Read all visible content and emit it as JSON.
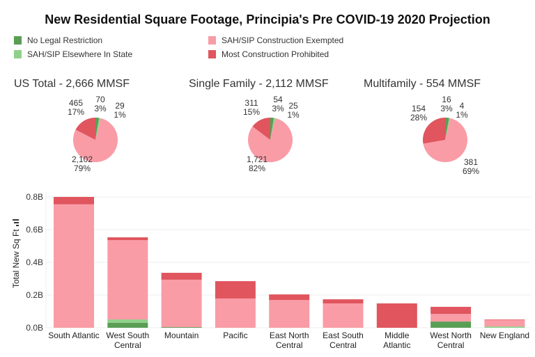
{
  "title": "New Residential Square Footage, Principia's Pre COVID-19 2020 Projection",
  "legend": [
    {
      "label": "No Legal Restriction",
      "color": "#5a9e55"
    },
    {
      "label": "SAH/SIP Elsewhere In State",
      "color": "#8fd18a"
    },
    {
      "label": "SAH/SIP Construction Exempted",
      "color": "#f99ca6"
    },
    {
      "label": "Most Construction Prohibited",
      "color": "#e0555e"
    }
  ],
  "chart_data": [
    {
      "type": "pie",
      "title": "US Total - 2,666 MMSF",
      "slices": [
        {
          "name": "No Legal Restriction",
          "value": 70,
          "value_label": "70",
          "percent": "3%"
        },
        {
          "name": "SAH/SIP Elsewhere In State",
          "value": 29,
          "value_label": "29",
          "percent": "1%"
        },
        {
          "name": "SAH/SIP Construction Exempted",
          "value": 2102,
          "value_label": "2,102",
          "percent": "79%"
        },
        {
          "name": "Most Construction Prohibited",
          "value": 465,
          "value_label": "465",
          "percent": "17%"
        }
      ]
    },
    {
      "type": "pie",
      "title": "Single Family - 2,112 MMSF",
      "slices": [
        {
          "name": "No Legal Restriction",
          "value": 54,
          "value_label": "54",
          "percent": "3%"
        },
        {
          "name": "SAH/SIP Elsewhere In State",
          "value": 25,
          "value_label": "25",
          "percent": "1%"
        },
        {
          "name": "SAH/SIP Construction Exempted",
          "value": 1721,
          "value_label": "1,721",
          "percent": "82%"
        },
        {
          "name": "Most Construction Prohibited",
          "value": 311,
          "value_label": "311",
          "percent": "15%"
        }
      ]
    },
    {
      "type": "pie",
      "title": "Multifamily - 554 MMSF",
      "slices": [
        {
          "name": "No Legal Restriction",
          "value": 16,
          "value_label": "16",
          "percent": "3%"
        },
        {
          "name": "SAH/SIP Elsewhere In State",
          "value": 4,
          "value_label": "4",
          "percent": "1%"
        },
        {
          "name": "SAH/SIP Construction Exempted",
          "value": 381,
          "value_label": "381",
          "percent": "69%"
        },
        {
          "name": "Most Construction Prohibited",
          "value": 154,
          "value_label": "154",
          "percent": "28%"
        }
      ]
    },
    {
      "type": "bar",
      "stacked": true,
      "ylabel": "Total New Sq Ft",
      "xlabel": "",
      "ylim": [
        0,
        0.8
      ],
      "yticks": [
        {
          "value": 0.0,
          "label": "0.0B"
        },
        {
          "value": 0.2,
          "label": "0.2B"
        },
        {
          "value": 0.4,
          "label": "0.4B"
        },
        {
          "value": 0.6,
          "label": "0.6B"
        },
        {
          "value": 0.8,
          "label": "0.8B"
        }
      ],
      "grid": true,
      "categories": [
        [
          "South Atlantic"
        ],
        [
          "West South",
          "Central"
        ],
        [
          "Mountain"
        ],
        [
          "Pacific"
        ],
        [
          "East North",
          "Central"
        ],
        [
          "East South",
          "Central"
        ],
        [
          "Middle",
          "Atlantic"
        ],
        [
          "West North",
          "Central"
        ],
        [
          "New England"
        ]
      ],
      "units": "billion sq ft",
      "series": [
        {
          "name": "No Legal Restriction",
          "values": [
            0,
            0.03,
            0.004,
            0,
            0,
            0,
            0,
            0.038,
            0
          ]
        },
        {
          "name": "SAH/SIP Elsewhere In State",
          "values": [
            0,
            0.021,
            0,
            0,
            0,
            0,
            0,
            0,
            0.008
          ]
        },
        {
          "name": "SAH/SIP Construction Exempted",
          "values": [
            0.755,
            0.485,
            0.29,
            0.179,
            0.17,
            0.149,
            0,
            0.047,
            0.04
          ]
        },
        {
          "name": "Most Construction Prohibited",
          "values": [
            0.045,
            0.017,
            0.042,
            0.106,
            0.034,
            0.025,
            0.149,
            0.043,
            0.003
          ]
        }
      ]
    }
  ]
}
